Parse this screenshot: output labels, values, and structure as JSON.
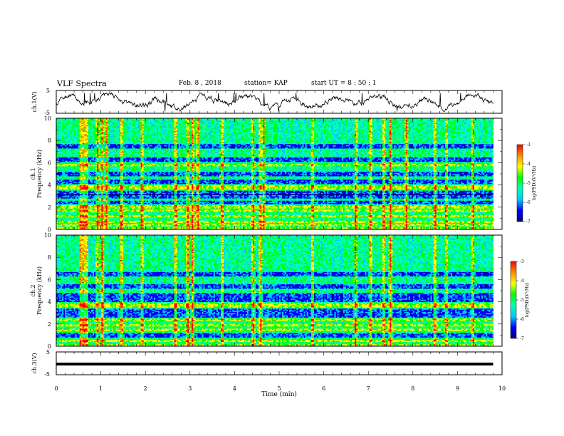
{
  "header": {
    "title": "VLF Spectra",
    "date": "Feb. 8 , 2018",
    "station": "station= KAP",
    "start": "start UT = 8 : 50 : 1"
  },
  "chart_data": [
    {
      "type": "line",
      "name": "ch1-waveform",
      "ylabel": "ch.1(V)",
      "ylim": [
        -5,
        5
      ],
      "yticks": [
        "5",
        "-5"
      ],
      "xlim": [
        0,
        10
      ],
      "data_extent_min": 9.8,
      "amplitude_range": [
        -4.2,
        3.9
      ]
    },
    {
      "type": "heatmap",
      "name": "ch1-spectrogram",
      "ylabel": "ch.1\nFrequency (kHz)",
      "ylabel_parts": [
        "ch.1",
        "Frequency (kHz)"
      ],
      "ylim": [
        0,
        10
      ],
      "yticks": [
        "0",
        "2",
        "4",
        "6",
        "8",
        "10"
      ],
      "xlim": [
        0,
        10
      ],
      "data_extent_min": 9.8,
      "bright_bands_khz": [
        0.4,
        0.7,
        1.2,
        1.7,
        2.0,
        2.2,
        3.7,
        3.9,
        5.8
      ],
      "dark_bands_khz": [
        2.4,
        3.0,
        3.3,
        4.3,
        5.0,
        6.3,
        7.5
      ],
      "vertical_bursts_min": [
        0.55,
        0.62,
        0.68,
        0.93,
        1.03,
        1.12,
        1.47,
        1.92,
        2.68,
        2.95,
        3.06,
        3.18,
        3.72,
        4.42,
        4.58,
        4.65,
        5.75,
        6.72,
        7.05,
        7.35,
        7.5,
        7.85,
        8.5,
        8.75,
        9.35
      ]
    },
    {
      "type": "heatmap",
      "name": "ch2-spectrogram",
      "ylabel": "ch.2\nFrequency (kHz)",
      "ylabel_parts": [
        "ch.2",
        "Frequency (kHz)"
      ],
      "ylim": [
        0,
        10
      ],
      "yticks": [
        "0",
        "2",
        "4",
        "6",
        "8",
        "10"
      ],
      "xlim": [
        0,
        10
      ],
      "data_extent_min": 9.8,
      "bright_bands_khz": [
        0.5,
        1.5,
        1.9,
        2.4,
        3.6,
        3.8
      ],
      "dark_bands_khz": [
        1.0,
        2.8,
        3.2,
        4.2,
        4.6,
        5.4,
        6.5
      ],
      "vertical_bursts_min": [
        0.55,
        0.62,
        0.68,
        0.93,
        1.03,
        1.47,
        1.92,
        2.68,
        2.95,
        3.06,
        3.72,
        4.42,
        4.58,
        5.75,
        6.72,
        7.05,
        7.35,
        7.5,
        8.5,
        8.75,
        9.35
      ]
    },
    {
      "type": "line",
      "name": "ch3-waveform",
      "ylabel": "ch.3(V)",
      "ylim": [
        -5,
        5
      ],
      "yticks": [
        "5",
        "-5"
      ],
      "xlim": [
        0,
        10
      ],
      "data_extent_min": 9.8,
      "constant_value": 0
    }
  ],
  "x_axis": {
    "label": "Time (min)",
    "ticks": [
      "0",
      "1",
      "2",
      "3",
      "4",
      "5",
      "6",
      "7",
      "8",
      "9",
      "10"
    ]
  },
  "colorbar": {
    "label": "log(PSD)(V²/Hz)",
    "ticks": [
      "-3",
      "-4",
      "-5",
      "-6",
      "-7"
    ],
    "range": [
      -7,
      -3
    ],
    "stops": [
      "#00007f",
      "#0000ff",
      "#00c8ff",
      "#00ffb4",
      "#00ff00",
      "#ffff00",
      "#ff8c00",
      "#ff0000"
    ]
  }
}
